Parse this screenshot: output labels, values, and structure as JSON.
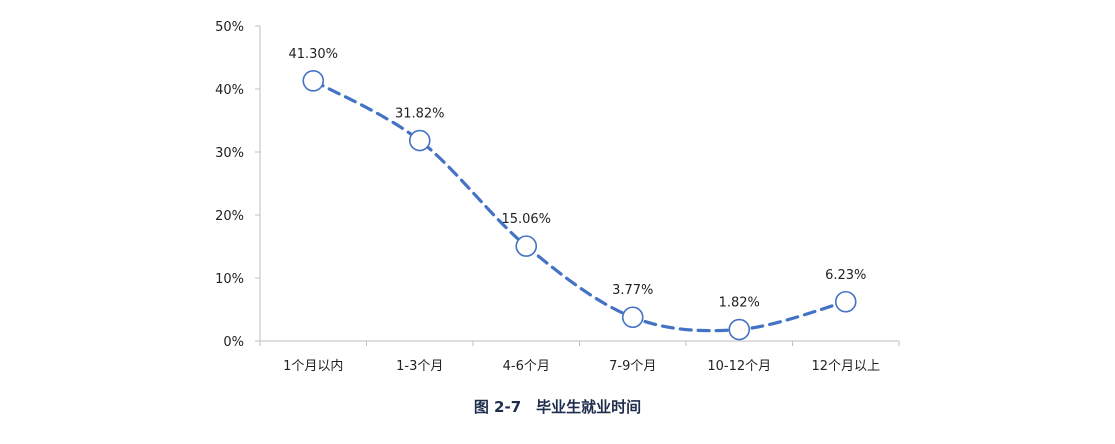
{
  "chart_data": {
    "type": "line",
    "categories": [
      "1个月以内",
      "1-3个月",
      "4-6个月",
      "7-9个月",
      "10-12个月",
      "12个月以上"
    ],
    "values": [
      41.3,
      31.82,
      15.06,
      3.77,
      1.82,
      6.23
    ],
    "data_labels": [
      "41.30%",
      "31.82%",
      "15.06%",
      "3.77%",
      "1.82%",
      "6.23%"
    ],
    "y_ticks": [
      "0%",
      "10%",
      "20%",
      "30%",
      "40%",
      "50%"
    ],
    "ylim": [
      0,
      50
    ],
    "grid": false,
    "line_style": "dashed-smooth",
    "marker": "open-circle",
    "color": "#4472C4"
  },
  "caption": "图 2-7　毕业生就业时间"
}
